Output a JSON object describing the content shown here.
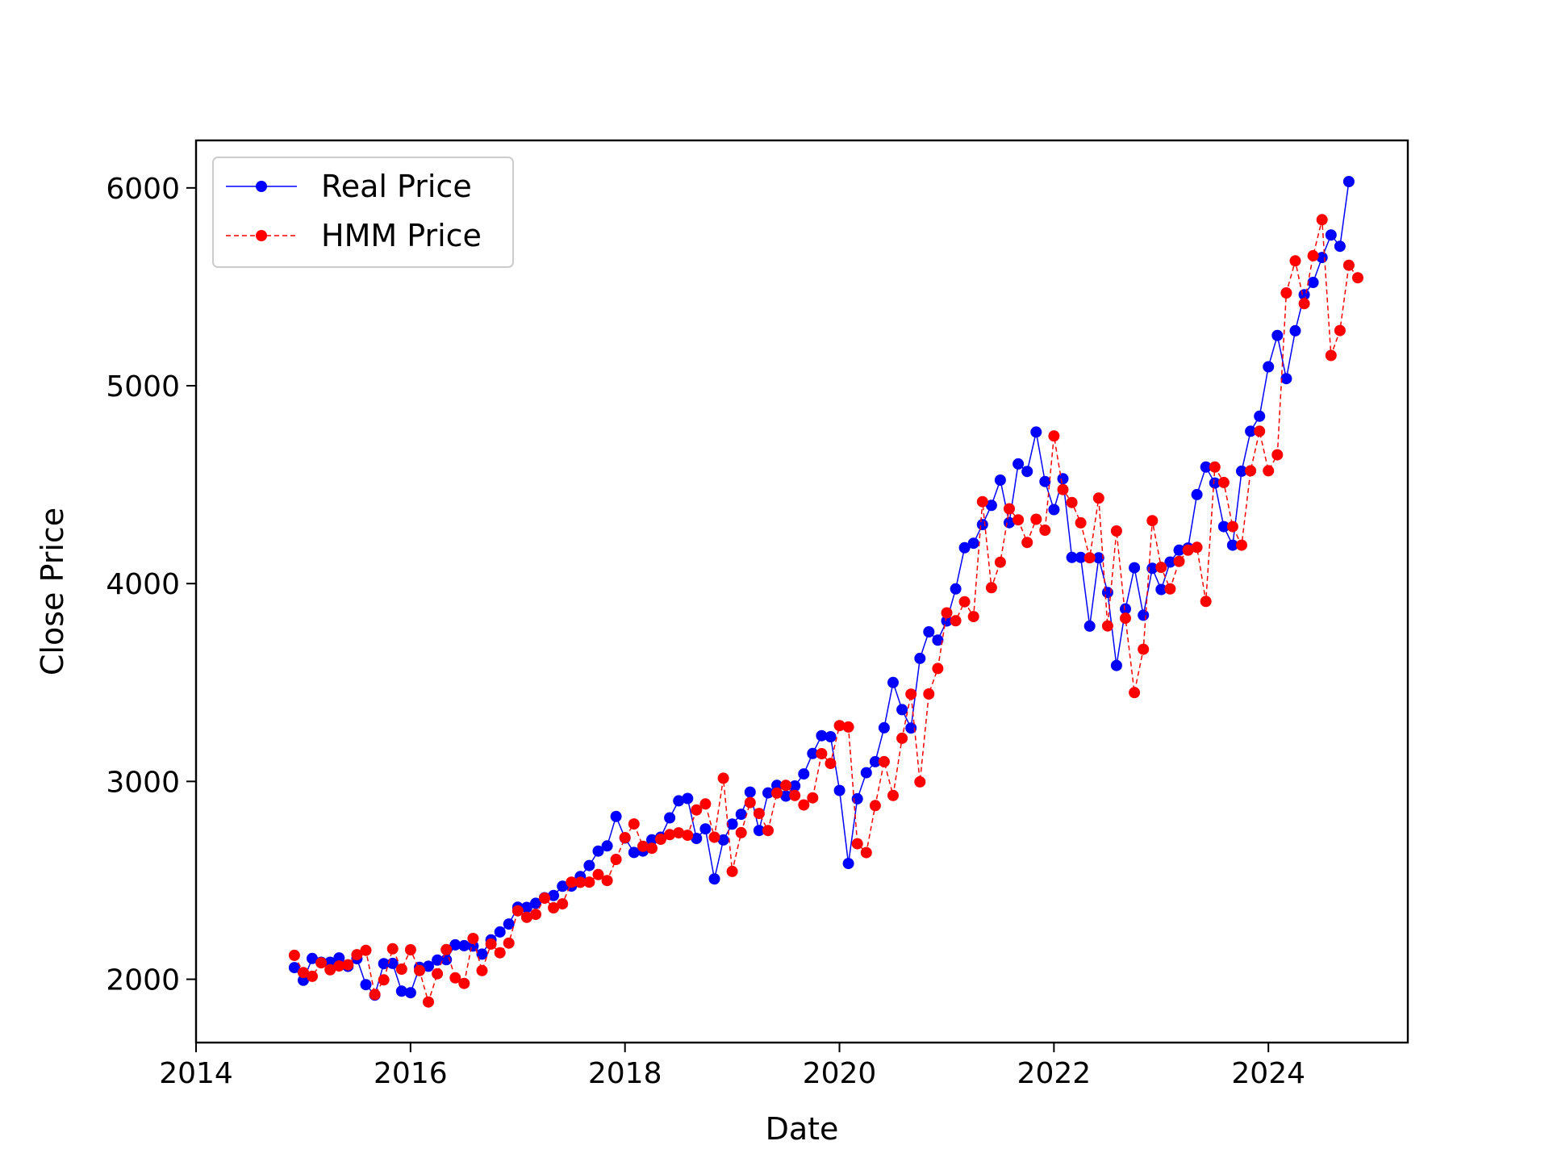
{
  "chart_data": {
    "type": "line",
    "title": "",
    "xlabel": "Date",
    "ylabel": "Close Price",
    "xlim": [
      2014.0,
      2025.3
    ],
    "ylim": [
      1680,
      6240
    ],
    "x_ticks": [
      2014,
      2016,
      2018,
      2020,
      2022,
      2024
    ],
    "y_ticks": [
      2000,
      3000,
      4000,
      5000,
      6000
    ],
    "grid": false,
    "legend_position": "upper-left",
    "series": [
      {
        "name": "Real Price",
        "color": "#0000ff",
        "line_style": "solid",
        "marker": "circle",
        "values": [
          2059,
          1995,
          2105,
          2086,
          2086,
          2108,
          2065,
          2104,
          1973,
          1920,
          2079,
          2080,
          1940,
          1932,
          2060,
          2066,
          2097,
          2099,
          2174,
          2170,
          2168,
          2127,
          2199,
          2239,
          2279,
          2364,
          2363,
          2384,
          2412,
          2423,
          2470,
          2471,
          2519,
          2575,
          2648,
          2674,
          2823,
          2714,
          2641,
          2648,
          2705,
          2718,
          2816,
          2902,
          2914,
          2712,
          2760,
          2507,
          2704,
          2784,
          2834,
          2946,
          2752,
          2942,
          2980,
          2926,
          2977,
          3038,
          3141,
          3231,
          3226,
          2954,
          2585,
          2912,
          3044,
          3100,
          3271,
          3500,
          3363,
          3270,
          3622,
          3756,
          3714,
          3811,
          3973,
          4181,
          4204,
          4298,
          4395,
          4523,
          4308,
          4605,
          4567,
          4766,
          4516,
          4374,
          4530,
          4132,
          4132,
          3785,
          4130,
          3955,
          3586,
          3872,
          4080,
          3840,
          4077,
          3970,
          4109,
          4169,
          4180,
          4450,
          4589,
          4508,
          4288,
          4194,
          4568,
          4770,
          4846,
          5096,
          5254,
          5036,
          5278,
          5460,
          5522,
          5648,
          5762,
          5705,
          6032
        ]
      },
      {
        "name": "HMM Price",
        "color": "#ff0000",
        "line_style": "dashed",
        "marker": "circle",
        "values": [
          2121,
          2034,
          2015,
          2083,
          2048,
          2067,
          2073,
          2124,
          2146,
          1923,
          1997,
          2154,
          2051,
          2149,
          2044,
          1885,
          2028,
          2150,
          2007,
          1979,
          2206,
          2044,
          2178,
          2134,
          2183,
          2346,
          2313,
          2328,
          2410,
          2361,
          2381,
          2491,
          2490,
          2491,
          2529,
          2499,
          2606,
          2716,
          2785,
          2672,
          2662,
          2708,
          2731,
          2740,
          2728,
          2856,
          2886,
          2718,
          3016,
          2545,
          2741,
          2893,
          2838,
          2752,
          2941,
          2980,
          2929,
          2881,
          2917,
          3140,
          3091,
          3282,
          3275,
          2685,
          2640,
          2878,
          3100,
          2929,
          3218,
          3441,
          2998,
          3442,
          3571,
          3852,
          3812,
          3908,
          3833,
          4414,
          3979,
          4108,
          4378,
          4322,
          4208,
          4325,
          4270,
          4746,
          4475,
          4410,
          4307,
          4130,
          4432,
          3786,
          4266,
          3825,
          3449,
          3668,
          4318,
          4082,
          3973,
          4112,
          4169,
          4183,
          3910,
          4589,
          4511,
          4288,
          4194,
          4570,
          4770,
          4570,
          4651,
          5469,
          5631,
          5415,
          5657,
          5839,
          5153,
          5279,
          5609,
          5546
        ]
      }
    ]
  }
}
